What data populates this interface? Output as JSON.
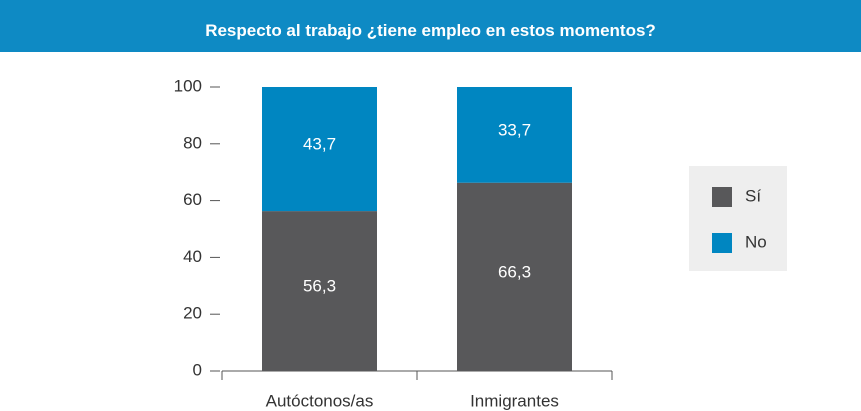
{
  "chart_data": {
    "type": "stacked_bar",
    "title": "Respecto al trabajo ¿tiene empleo en estos momentos?",
    "categories": [
      "Autóctonos/as",
      "Inmigrantes"
    ],
    "series": [
      {
        "name": "Sí",
        "color": "#58585a",
        "values": [
          56.3,
          66.3
        ],
        "value_labels": [
          "56,3",
          "66,3"
        ]
      },
      {
        "name": "No",
        "color": "#0086c1",
        "values": [
          43.7,
          33.7
        ],
        "value_labels": [
          "43,7",
          "33,7"
        ]
      }
    ],
    "ylim": [
      0,
      100
    ],
    "yticks": [
      0,
      20,
      40,
      60,
      80,
      100
    ],
    "grid": false,
    "legend": "right"
  }
}
